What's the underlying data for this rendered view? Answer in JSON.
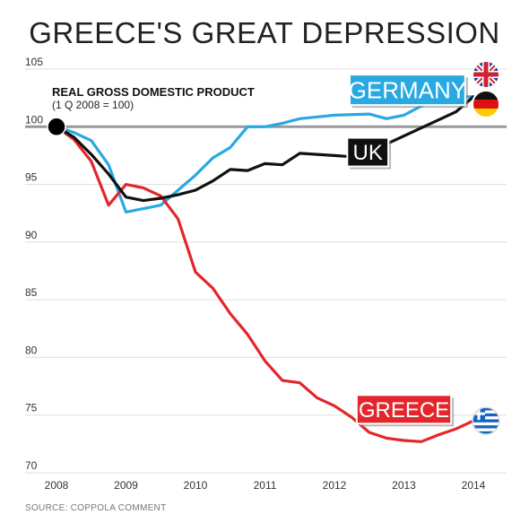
{
  "title": "GREECE'S GREAT DEPRESSION",
  "source": "SOURCE: COPPOLA COMMENT",
  "colors": {
    "uk": "#111111",
    "germany": "#29a9e1",
    "greece": "#e3262b",
    "baseline": "#999999"
  },
  "chart_data": {
    "type": "line",
    "subtitle": "REAL GROSS DOMESTIC PRODUCT",
    "subtitle2": "(1 Q 2008 = 100)",
    "y_ticks": [
      "105",
      "100",
      "95",
      "90",
      "85",
      "80",
      "75",
      "70"
    ],
    "x_ticks": [
      "2008",
      "2009",
      "2010",
      "2011",
      "2012",
      "2013",
      "2014"
    ],
    "ylim": [
      70,
      105
    ],
    "xlim": [
      2008,
      2014
    ],
    "baseline": 100,
    "grid": true,
    "series": [
      {
        "name": "GERMANY",
        "key": "germany",
        "label_x": 2013.05,
        "label_y": 103.2,
        "flag": "germany-flag-icon",
        "x": [
          2008,
          2008.25,
          2008.5,
          2008.75,
          2009,
          2009.5,
          2009.75,
          2010,
          2010.25,
          2010.5,
          2010.75,
          2011,
          2011.25,
          2011.5,
          2012,
          2012.5,
          2012.75,
          2013,
          2013.5,
          2014
        ],
        "y": [
          100,
          99.5,
          98.8,
          96.7,
          92.6,
          93.2,
          94.5,
          95.8,
          97.3,
          98.2,
          100.0,
          100.0,
          100.3,
          100.7,
          101.0,
          101.1,
          100.7,
          101.0,
          102.6,
          102.6
        ]
      },
      {
        "name": "UK",
        "key": "uk",
        "label_x": 2012.48,
        "label_y": 97.8,
        "flag": "uk-flag-icon",
        "x": [
          2008,
          2008.25,
          2008.5,
          2008.75,
          2009,
          2009.25,
          2009.5,
          2009.75,
          2010,
          2010.25,
          2010.5,
          2010.75,
          2011,
          2011.25,
          2011.5,
          2011.75,
          2012,
          2012.25,
          2012.5,
          2012.75,
          2013,
          2013.25,
          2013.5,
          2013.75,
          2014
        ],
        "y": [
          100,
          99.1,
          97.6,
          95.9,
          93.9,
          93.6,
          93.8,
          94.1,
          94.5,
          95.3,
          96.3,
          96.2,
          96.8,
          96.7,
          97.7,
          97.6,
          97.5,
          97.4,
          98.4,
          98.5,
          99.2,
          99.9,
          100.6,
          101.3,
          102.6
        ]
      },
      {
        "name": "GREECE",
        "key": "greece",
        "label_x": 2013.0,
        "label_y": 75.5,
        "flag": "greece-flag-icon",
        "x": [
          2008,
          2008.25,
          2008.5,
          2008.75,
          2009,
          2009.25,
          2009.5,
          2009.75,
          2010,
          2010.25,
          2010.5,
          2010.75,
          2011,
          2011.25,
          2011.5,
          2011.75,
          2012,
          2012.25,
          2012.5,
          2012.75,
          2013,
          2013.25,
          2013.5,
          2013.75,
          2014
        ],
        "y": [
          100,
          98.9,
          97.0,
          93.2,
          95.0,
          94.7,
          94.0,
          92.0,
          87.4,
          86.0,
          83.8,
          82.0,
          79.7,
          78.0,
          77.8,
          76.5,
          75.8,
          74.8,
          73.5,
          73.0,
          72.8,
          72.7,
          73.3,
          73.8,
          74.5
        ]
      }
    ]
  }
}
